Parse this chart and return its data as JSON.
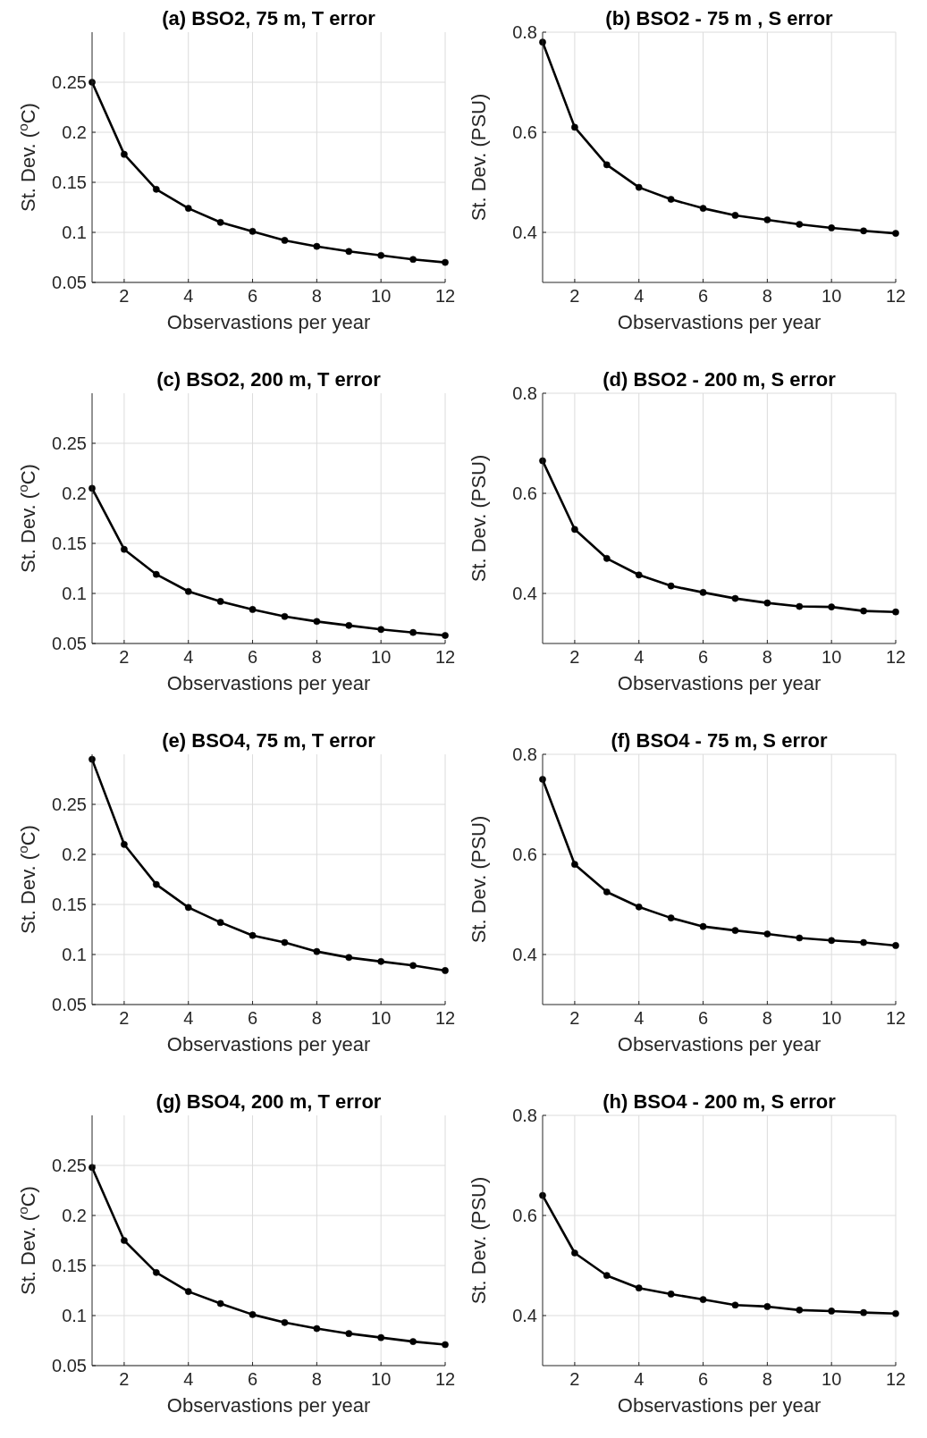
{
  "chart_data": [
    {
      "type": "line",
      "title": "(a) BSO2, 75 m, T error",
      "xlabel": "Observastions per year",
      "ylabel": "St. Dev. ($^{o}$C)",
      "x": [
        1,
        2,
        3,
        4,
        5,
        6,
        7,
        8,
        9,
        10,
        11,
        12
      ],
      "xlim": [
        1,
        12
      ],
      "xticks": [
        2,
        4,
        6,
        8,
        10,
        12
      ],
      "ylim": [
        0.05,
        0.3
      ],
      "yticks": [
        0.05,
        0.1,
        0.15,
        0.2,
        0.25
      ],
      "grid": true,
      "marker": "circle",
      "series": [
        {
          "color": "#000000",
          "values": [
            0.25,
            0.178,
            0.143,
            0.124,
            0.11,
            0.101,
            0.092,
            0.086,
            0.081,
            0.077,
            0.073,
            0.07
          ]
        }
      ]
    },
    {
      "type": "line",
      "title": "(b) BSO2 - 75 m , S error",
      "xlabel": "Observastions per year",
      "ylabel": "St. Dev. (PSU)",
      "x": [
        1,
        2,
        3,
        4,
        5,
        6,
        7,
        8,
        9,
        10,
        11,
        12
      ],
      "xlim": [
        1,
        12
      ],
      "xticks": [
        2,
        4,
        6,
        8,
        10,
        12
      ],
      "ylim": [
        0.3,
        0.8
      ],
      "yticks": [
        0.4,
        0.6,
        0.8
      ],
      "grid": true,
      "marker": "circle",
      "series": [
        {
          "color": "#000000",
          "values": [
            0.78,
            0.61,
            0.535,
            0.49,
            0.466,
            0.448,
            0.434,
            0.425,
            0.416,
            0.409,
            0.403,
            0.398
          ]
        }
      ]
    },
    {
      "type": "line",
      "title": "(c) BSO2, 200 m, T error",
      "xlabel": "Observastions per year",
      "ylabel": "St. Dev. ($^{o}$C)",
      "x": [
        1,
        2,
        3,
        4,
        5,
        6,
        7,
        8,
        9,
        10,
        11,
        12
      ],
      "xlim": [
        1,
        12
      ],
      "xticks": [
        2,
        4,
        6,
        8,
        10,
        12
      ],
      "ylim": [
        0.05,
        0.3
      ],
      "yticks": [
        0.05,
        0.1,
        0.15,
        0.2,
        0.25
      ],
      "grid": true,
      "marker": "circle",
      "series": [
        {
          "color": "#000000",
          "values": [
            0.205,
            0.144,
            0.119,
            0.102,
            0.092,
            0.084,
            0.077,
            0.072,
            0.068,
            0.064,
            0.061,
            0.058
          ]
        }
      ]
    },
    {
      "type": "line",
      "title": "(d) BSO2 - 200 m, S error",
      "xlabel": "Observastions per year",
      "ylabel": "St. Dev. (PSU)",
      "x": [
        1,
        2,
        3,
        4,
        5,
        6,
        7,
        8,
        9,
        10,
        11,
        12
      ],
      "xlim": [
        1,
        12
      ],
      "xticks": [
        2,
        4,
        6,
        8,
        10,
        12
      ],
      "ylim": [
        0.3,
        0.8
      ],
      "yticks": [
        0.4,
        0.6,
        0.8
      ],
      "grid": true,
      "marker": "circle",
      "series": [
        {
          "color": "#000000",
          "values": [
            0.665,
            0.528,
            0.47,
            0.437,
            0.415,
            0.402,
            0.39,
            0.381,
            0.374,
            0.373,
            0.365,
            0.363
          ]
        }
      ]
    },
    {
      "type": "line",
      "title": "(e) BSO4, 75 m, T error",
      "xlabel": "Observastions per year",
      "ylabel": "St. Dev. ($^{o}$C)",
      "x": [
        1,
        2,
        3,
        4,
        5,
        6,
        7,
        8,
        9,
        10,
        11,
        12
      ],
      "xlim": [
        1,
        12
      ],
      "xticks": [
        2,
        4,
        6,
        8,
        10,
        12
      ],
      "ylim": [
        0.05,
        0.3
      ],
      "yticks": [
        0.05,
        0.1,
        0.15,
        0.2,
        0.25
      ],
      "grid": true,
      "marker": "circle",
      "series": [
        {
          "color": "#000000",
          "values": [
            0.295,
            0.21,
            0.17,
            0.147,
            0.132,
            0.119,
            0.112,
            0.103,
            0.097,
            0.093,
            0.089,
            0.084
          ]
        }
      ]
    },
    {
      "type": "line",
      "title": "(f) BSO4 - 75 m, S error",
      "xlabel": "Observastions per year",
      "ylabel": "St. Dev. (PSU)",
      "x": [
        1,
        2,
        3,
        4,
        5,
        6,
        7,
        8,
        9,
        10,
        11,
        12
      ],
      "xlim": [
        1,
        12
      ],
      "xticks": [
        2,
        4,
        6,
        8,
        10,
        12
      ],
      "ylim": [
        0.3,
        0.8
      ],
      "yticks": [
        0.4,
        0.6,
        0.8
      ],
      "grid": true,
      "marker": "circle",
      "series": [
        {
          "color": "#000000",
          "values": [
            0.75,
            0.58,
            0.525,
            0.495,
            0.473,
            0.456,
            0.448,
            0.441,
            0.433,
            0.428,
            0.424,
            0.418
          ]
        }
      ]
    },
    {
      "type": "line",
      "title": "(g) BSO4, 200 m, T error",
      "xlabel": "Observastions per year",
      "ylabel": "St. Dev. ($^{o}$C)",
      "x": [
        1,
        2,
        3,
        4,
        5,
        6,
        7,
        8,
        9,
        10,
        11,
        12
      ],
      "xlim": [
        1,
        12
      ],
      "xticks": [
        2,
        4,
        6,
        8,
        10,
        12
      ],
      "ylim": [
        0.05,
        0.3
      ],
      "yticks": [
        0.05,
        0.1,
        0.15,
        0.2,
        0.25
      ],
      "grid": true,
      "marker": "circle",
      "series": [
        {
          "color": "#000000",
          "values": [
            0.248,
            0.175,
            0.143,
            0.124,
            0.112,
            0.101,
            0.093,
            0.087,
            0.082,
            0.078,
            0.074,
            0.071
          ]
        }
      ]
    },
    {
      "type": "line",
      "title": "(h) BSO4 - 200 m, S error",
      "xlabel": "Observastions per year",
      "ylabel": "St. Dev. (PSU)",
      "x": [
        1,
        2,
        3,
        4,
        5,
        6,
        7,
        8,
        9,
        10,
        11,
        12
      ],
      "xlim": [
        1,
        12
      ],
      "xticks": [
        2,
        4,
        6,
        8,
        10,
        12
      ],
      "ylim": [
        0.3,
        0.8
      ],
      "yticks": [
        0.4,
        0.6,
        0.8
      ],
      "grid": true,
      "marker": "circle",
      "series": [
        {
          "color": "#000000",
          "values": [
            0.64,
            0.525,
            0.48,
            0.455,
            0.443,
            0.432,
            0.421,
            0.418,
            0.411,
            0.409,
            0.406,
            0.404
          ]
        }
      ]
    }
  ]
}
